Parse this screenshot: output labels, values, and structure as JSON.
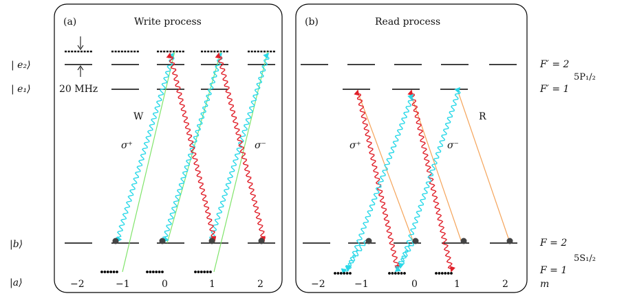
{
  "panel_a": {
    "tag": "(a)",
    "title": "Write process",
    "ground_label": "|a⟩",
    "b_label": "|b⟩",
    "e1_label": "| e₁⟩",
    "e2_label": "| e₂⟩",
    "detuning": "20 MHz",
    "write_beam": "W",
    "sigma_plus": "σ⁺",
    "sigma_minus": "σ⁻",
    "m_values": [
      "−2",
      "−1",
      "0",
      "1",
      "2"
    ]
  },
  "panel_b": {
    "tag": "(b)",
    "title": "Read process",
    "read_beam": "R",
    "sigma_plus": "σ⁺",
    "sigma_minus": "σ⁻",
    "m_values": [
      "−2",
      "−1",
      "0",
      "1",
      "2"
    ]
  },
  "right_labels": {
    "fp2": "F′ = 2",
    "fp1": "F′ = 1",
    "state_p": "5P₁/₂",
    "f2": "F = 2",
    "f1": "F = 1",
    "state_s": "5S₁/₂",
    "m": "m"
  },
  "colors": {
    "write_green": "#7fe46a",
    "read_orange": "#f5a45a",
    "wavy_red": "#e0202a",
    "wavy_cyan": "#2ad8e8",
    "atom": "#444444"
  }
}
